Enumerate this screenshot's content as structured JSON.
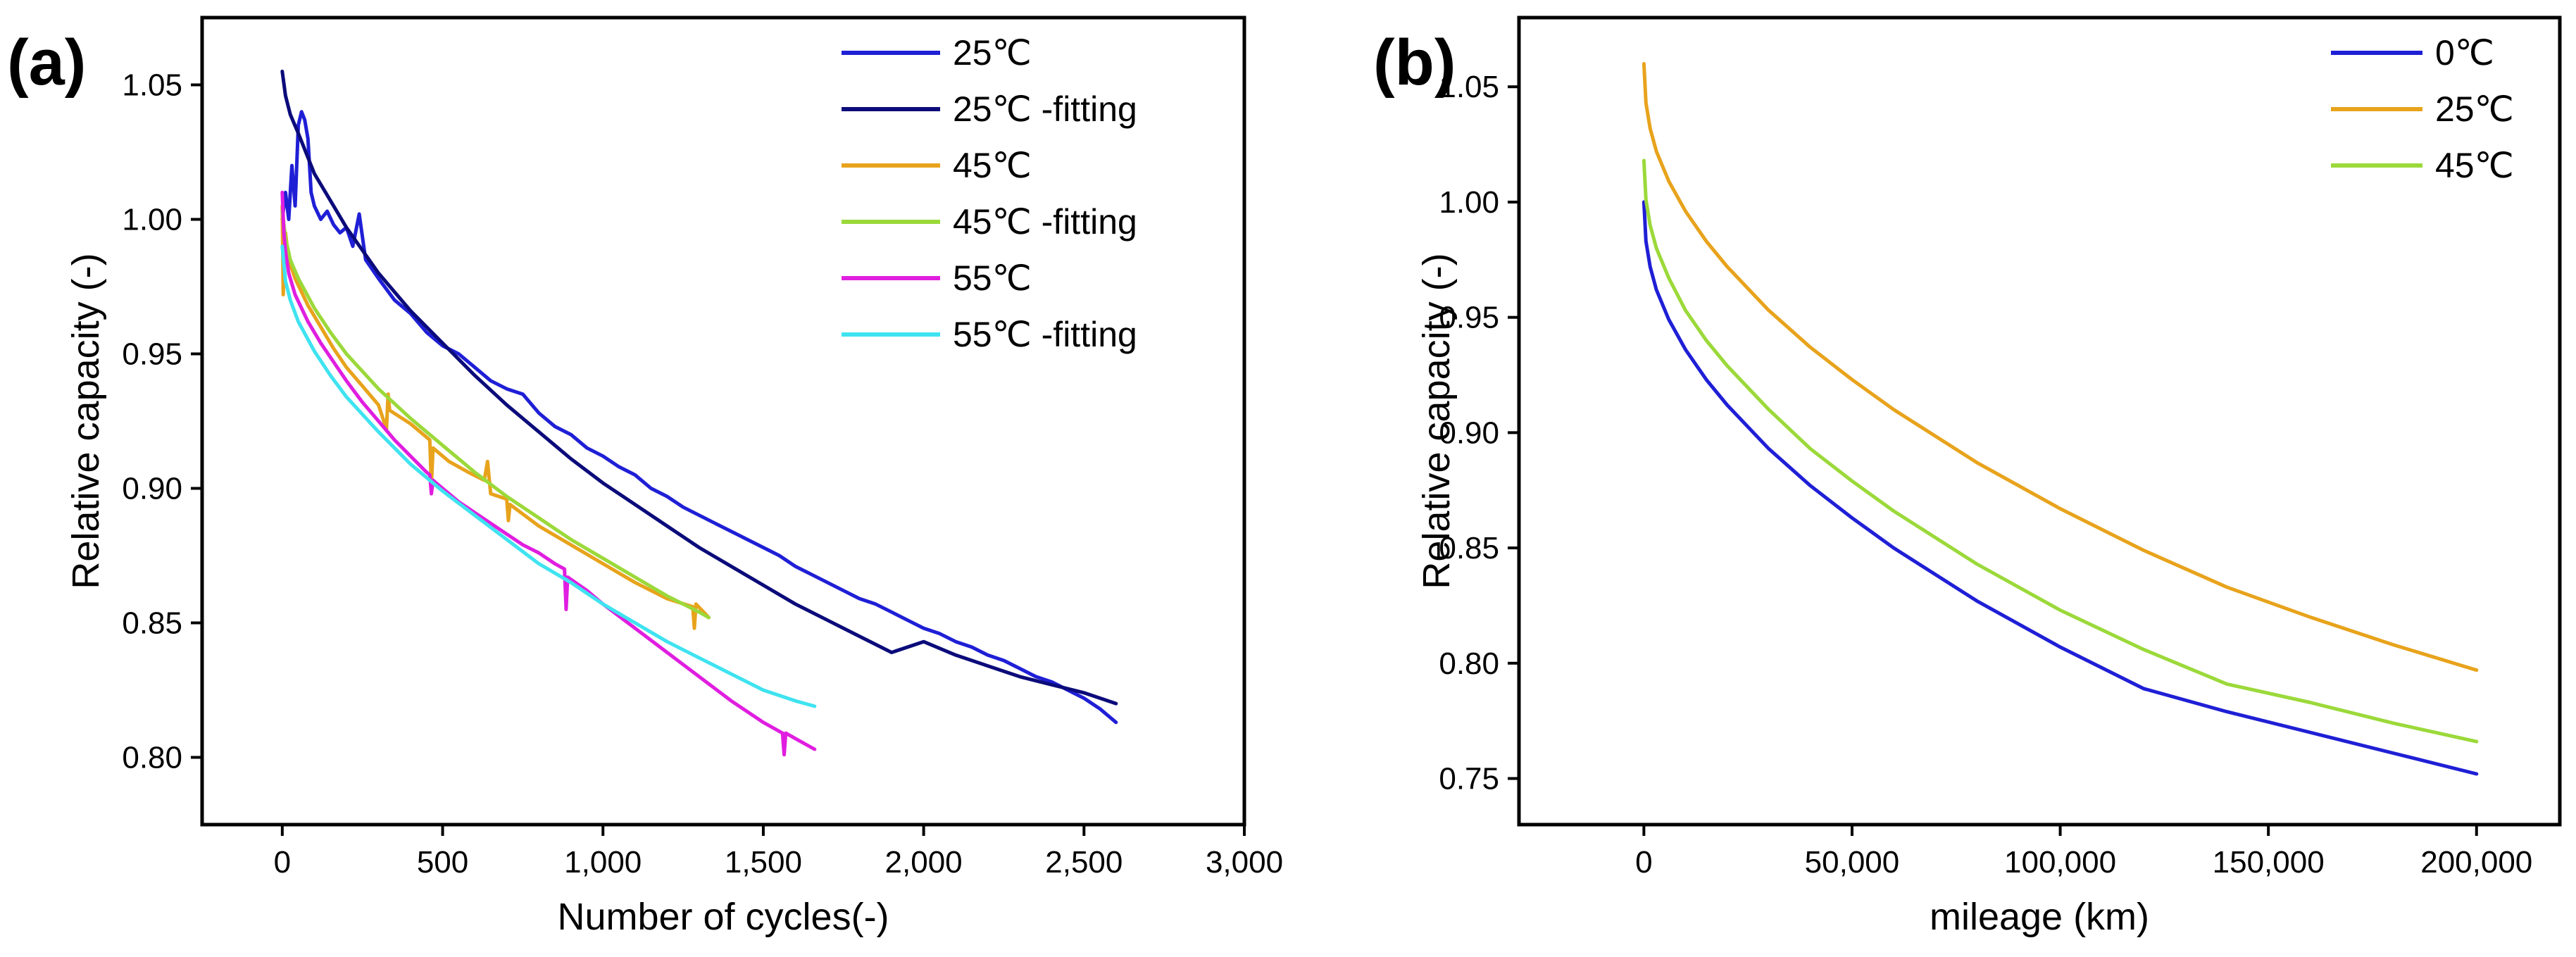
{
  "chart_data": [
    {
      "type": "line",
      "panel_label": "(a)",
      "xlabel": "Number of cycles(-)",
      "ylabel": "Relative capacity (-)",
      "xlim": [
        -250,
        3000
      ],
      "ylim": [
        0.775,
        1.075
      ],
      "xticks": [
        0,
        500,
        1000,
        1500,
        2000,
        2500,
        3000
      ],
      "xtick_labels": [
        "0",
        "500",
        "1,000",
        "1,500",
        "2,000",
        "2,500",
        "3,000"
      ],
      "yticks": [
        0.8,
        0.85,
        0.9,
        0.95,
        1.0,
        1.05
      ],
      "ytick_labels": [
        "0.80",
        "0.85",
        "0.90",
        "0.95",
        "1.00",
        "1.05"
      ],
      "grid": false,
      "legend_position": "top-right",
      "series": [
        {
          "name": "25℃",
          "color": "#1f1fd6",
          "x": [
            0,
            10,
            20,
            30,
            40,
            50,
            60,
            70,
            80,
            90,
            100,
            120,
            140,
            160,
            180,
            200,
            220,
            240,
            260,
            300,
            350,
            400,
            450,
            500,
            550,
            600,
            650,
            700,
            750,
            800,
            850,
            900,
            950,
            1000,
            1050,
            1100,
            1150,
            1200,
            1250,
            1300,
            1350,
            1400,
            1450,
            1500,
            1550,
            1600,
            1650,
            1700,
            1750,
            1800,
            1850,
            1900,
            1950,
            2000,
            2050,
            2100,
            2150,
            2200,
            2250,
            2300,
            2350,
            2400,
            2450,
            2500,
            2550,
            2600
          ],
          "y": [
            1.0,
            1.01,
            1.0,
            1.02,
            1.005,
            1.035,
            1.04,
            1.037,
            1.03,
            1.01,
            1.005,
            1.0,
            1.003,
            0.998,
            0.995,
            0.997,
            0.99,
            1.002,
            0.985,
            0.978,
            0.97,
            0.965,
            0.958,
            0.953,
            0.95,
            0.945,
            0.94,
            0.937,
            0.935,
            0.928,
            0.923,
            0.92,
            0.915,
            0.912,
            0.908,
            0.905,
            0.9,
            0.897,
            0.893,
            0.89,
            0.887,
            0.884,
            0.881,
            0.878,
            0.875,
            0.871,
            0.868,
            0.865,
            0.862,
            0.859,
            0.857,
            0.854,
            0.851,
            0.848,
            0.846,
            0.843,
            0.841,
            0.838,
            0.836,
            0.833,
            0.83,
            0.828,
            0.825,
            0.822,
            0.818,
            0.813
          ]
        },
        {
          "name": "25℃ -fitting",
          "color": "#0b0b7a",
          "x": [
            0,
            10,
            25,
            50,
            100,
            150,
            200,
            300,
            400,
            500,
            600,
            700,
            800,
            900,
            1000,
            1100,
            1200,
            1300,
            1400,
            1500,
            1600,
            1700,
            1800,
            1900,
            2000,
            2100,
            2200,
            2300,
            2400,
            2500,
            2600
          ],
          "y": [
            1.055,
            1.046,
            1.039,
            1.032,
            1.017,
            1.007,
            0.997,
            0.98,
            0.966,
            0.954,
            0.942,
            0.931,
            0.921,
            0.911,
            0.902,
            0.894,
            0.886,
            0.878,
            0.871,
            0.864,
            0.857,
            0.851,
            0.845,
            0.839,
            0.843,
            0.838,
            0.834,
            0.83,
            0.827,
            0.824,
            0.82
          ]
        },
        {
          "name": "45℃",
          "color": "#e8a31c",
          "x": [
            0,
            3,
            6,
            10,
            20,
            40,
            80,
            120,
            160,
            200,
            250,
            300,
            325,
            330,
            335,
            400,
            460,
            465,
            470,
            520,
            580,
            630,
            640,
            650,
            700,
            705,
            710,
            800,
            900,
            1000,
            1100,
            1200,
            1280,
            1285,
            1290,
            1330
          ],
          "y": [
            1.005,
            0.972,
            0.99,
            0.995,
            0.985,
            0.978,
            0.968,
            0.96,
            0.952,
            0.945,
            0.938,
            0.931,
            0.922,
            0.935,
            0.929,
            0.924,
            0.918,
            0.901,
            0.915,
            0.91,
            0.906,
            0.903,
            0.91,
            0.898,
            0.896,
            0.888,
            0.894,
            0.886,
            0.879,
            0.872,
            0.865,
            0.859,
            0.856,
            0.848,
            0.857,
            0.852
          ]
        },
        {
          "name": "45℃ -fitting",
          "color": "#9bd93a",
          "x": [
            0,
            10,
            25,
            50,
            100,
            150,
            200,
            300,
            400,
            500,
            600,
            700,
            800,
            900,
            1000,
            1100,
            1200,
            1300,
            1330
          ],
          "y": [
            1.003,
            0.993,
            0.985,
            0.978,
            0.967,
            0.958,
            0.95,
            0.937,
            0.926,
            0.916,
            0.906,
            0.897,
            0.889,
            0.881,
            0.874,
            0.867,
            0.86,
            0.854,
            0.852
          ]
        },
        {
          "name": "55℃",
          "color": "#e01ee0",
          "x": [
            0,
            5,
            10,
            20,
            40,
            80,
            120,
            160,
            200,
            250,
            300,
            350,
            400,
            450,
            460,
            465,
            470,
            500,
            550,
            600,
            650,
            700,
            750,
            800,
            850,
            880,
            885,
            890,
            950,
            1000,
            1100,
            1200,
            1300,
            1400,
            1500,
            1560,
            1565,
            1570,
            1600,
            1660
          ],
          "y": [
            1.01,
            0.995,
            0.988,
            0.98,
            0.972,
            0.962,
            0.954,
            0.947,
            0.94,
            0.932,
            0.925,
            0.918,
            0.912,
            0.906,
            0.905,
            0.898,
            0.903,
            0.9,
            0.895,
            0.891,
            0.887,
            0.883,
            0.879,
            0.876,
            0.872,
            0.87,
            0.855,
            0.867,
            0.862,
            0.857,
            0.848,
            0.839,
            0.83,
            0.821,
            0.813,
            0.809,
            0.801,
            0.809,
            0.807,
            0.803
          ]
        },
        {
          "name": "55℃ -fitting",
          "color": "#3fe3f0",
          "x": [
            0,
            10,
            25,
            50,
            100,
            150,
            200,
            300,
            400,
            500,
            600,
            700,
            800,
            900,
            1000,
            1100,
            1200,
            1300,
            1400,
            1500,
            1600,
            1660
          ],
          "y": [
            0.99,
            0.977,
            0.97,
            0.962,
            0.951,
            0.942,
            0.934,
            0.921,
            0.909,
            0.899,
            0.89,
            0.881,
            0.872,
            0.865,
            0.857,
            0.85,
            0.843,
            0.837,
            0.831,
            0.825,
            0.821,
            0.819
          ]
        }
      ]
    },
    {
      "type": "line",
      "panel_label": "(b)",
      "xlabel": "mileage (km)",
      "ylabel": "Relative capacity (-)",
      "xlim": [
        -30000,
        220000
      ],
      "ylim": [
        0.73,
        1.08
      ],
      "xticks": [
        0,
        50000,
        100000,
        150000,
        200000
      ],
      "xtick_labels": [
        "0",
        "50,000",
        "100,000",
        "150,000",
        "200,000"
      ],
      "yticks": [
        0.75,
        0.8,
        0.85,
        0.9,
        0.95,
        1.0,
        1.05
      ],
      "ytick_labels": [
        "0.75",
        "0.80",
        "0.85",
        "0.90",
        "0.95",
        "1.00",
        "1.05"
      ],
      "grid": false,
      "legend_position": "top-right",
      "series": [
        {
          "name": "0℃",
          "color": "#1f1fd6",
          "x": [
            0,
            500,
            1500,
            3000,
            6000,
            10000,
            15000,
            20000,
            30000,
            40000,
            50000,
            60000,
            80000,
            100000,
            120000,
            140000,
            160000,
            180000,
            200000
          ],
          "y": [
            1.0,
            0.983,
            0.972,
            0.962,
            0.949,
            0.936,
            0.923,
            0.912,
            0.893,
            0.877,
            0.863,
            0.85,
            0.827,
            0.807,
            0.789,
            0.779,
            0.77,
            0.761,
            0.752
          ]
        },
        {
          "name": "25℃",
          "color": "#e8a31c",
          "x": [
            0,
            500,
            1500,
            3000,
            6000,
            10000,
            15000,
            20000,
            30000,
            40000,
            50000,
            60000,
            80000,
            100000,
            120000,
            140000,
            160000,
            180000,
            200000
          ],
          "y": [
            1.06,
            1.043,
            1.032,
            1.022,
            1.009,
            0.996,
            0.983,
            0.972,
            0.953,
            0.937,
            0.923,
            0.91,
            0.887,
            0.867,
            0.849,
            0.833,
            0.82,
            0.808,
            0.797
          ]
        },
        {
          "name": "45℃",
          "color": "#9bd93a",
          "x": [
            0,
            500,
            1500,
            3000,
            6000,
            10000,
            15000,
            20000,
            30000,
            40000,
            50000,
            60000,
            80000,
            100000,
            120000,
            140000,
            160000,
            180000,
            200000
          ],
          "y": [
            1.018,
            1.001,
            0.99,
            0.98,
            0.967,
            0.953,
            0.94,
            0.929,
            0.91,
            0.893,
            0.879,
            0.866,
            0.843,
            0.823,
            0.806,
            0.791,
            0.783,
            0.774,
            0.766
          ]
        }
      ]
    }
  ]
}
